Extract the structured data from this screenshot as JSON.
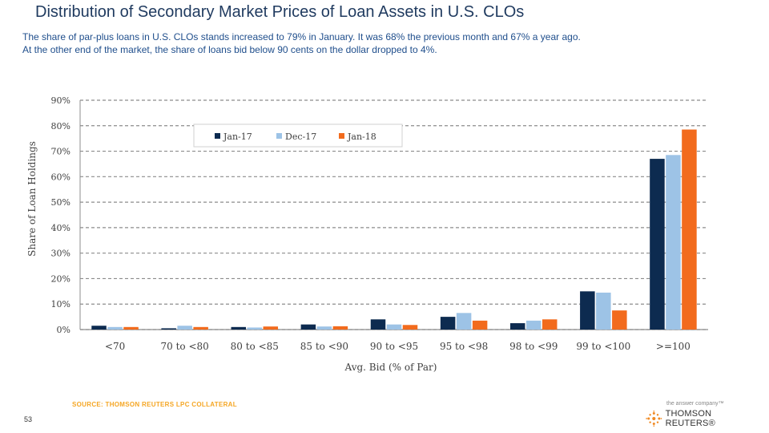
{
  "header": {
    "title": "Distribution of Secondary Market Prices of Loan Assets in U.S. CLOs",
    "subtitle_line1": "The share of par-plus loans in U.S. CLOs stands increased to 79% in January. It was 68% the previous month and 67% a year ago.",
    "subtitle_line2": "At the other end of the market, the share of loans bid below 90 cents on the dollar dropped to 4%."
  },
  "footer": {
    "source": "SOURCE: THOMSON REUTERS LPC COLLATERAL",
    "page_number": "53",
    "brand_tagline": "the answer company™",
    "brand_name": "THOMSON REUTERS®"
  },
  "chart_data": {
    "type": "bar",
    "xlabel": "Avg. Bid (% of Par)",
    "ylabel": "Share of Loan Holdings",
    "ylim": [
      0,
      90
    ],
    "yticks": [
      0,
      10,
      20,
      30,
      40,
      50,
      60,
      70,
      80,
      90
    ],
    "ytick_labels": [
      "0%",
      "10%",
      "20%",
      "30%",
      "40%",
      "50%",
      "60%",
      "70%",
      "80%",
      "90%"
    ],
    "grid": true,
    "legend_position": "top-right",
    "categories": [
      "<70",
      "70 to <80",
      "80 to <85",
      "85 to <90",
      "90 to <95",
      "95 to <98",
      "98 to <99",
      "99 to <100",
      ">=100"
    ],
    "series": [
      {
        "name": "Jan-17",
        "color": "#0d2b50",
        "values": [
          1.5,
          0.5,
          1.0,
          2.0,
          4.0,
          5.0,
          2.5,
          15.0,
          67.0
        ]
      },
      {
        "name": "Dec-17",
        "color": "#9dc3e6",
        "values": [
          1.0,
          1.5,
          0.8,
          1.2,
          2.0,
          6.5,
          3.5,
          14.5,
          68.5
        ]
      },
      {
        "name": "Jan-18",
        "color": "#f26b1d",
        "values": [
          1.0,
          1.0,
          1.2,
          1.3,
          1.8,
          3.5,
          4.0,
          7.5,
          78.5
        ]
      }
    ]
  }
}
